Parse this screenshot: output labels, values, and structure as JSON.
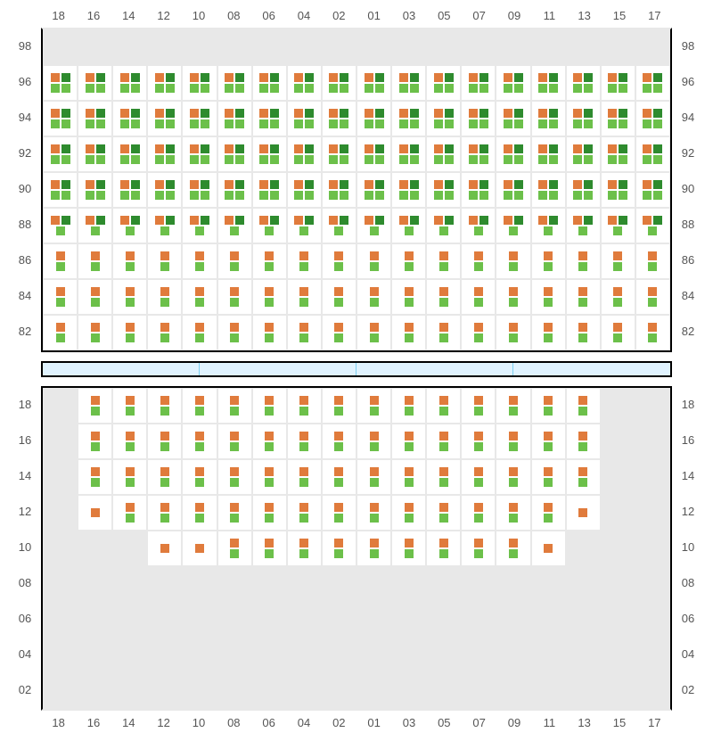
{
  "colors": {
    "orange": "#e07b3c",
    "green_light": "#6cc04a",
    "green_dark": "#2e8b2e",
    "cell_bg": "#ffffff",
    "empty_bg": "#e8e8e8"
  },
  "columns": [
    "18",
    "16",
    "14",
    "12",
    "10",
    "08",
    "06",
    "04",
    "02",
    "01",
    "03",
    "05",
    "07",
    "09",
    "11",
    "13",
    "15",
    "17"
  ],
  "top_section": {
    "rows": [
      "98",
      "96",
      "94",
      "92",
      "90",
      "88",
      "86",
      "84",
      "82"
    ],
    "cells": {
      "98": {
        "pattern": "empty",
        "cols": "all"
      },
      "96": {
        "pattern": "quad",
        "cols": "all"
      },
      "94": {
        "pattern": "quad",
        "cols": "all"
      },
      "92": {
        "pattern": "quad",
        "cols": "all"
      },
      "90": {
        "pattern": "quad",
        "cols": "all"
      },
      "88": {
        "pattern": "quad_partial",
        "cols": "all"
      },
      "86": {
        "pattern": "pair",
        "cols": "all"
      },
      "84": {
        "pattern": "pair",
        "cols": "all"
      },
      "82": {
        "pattern": "pair",
        "cols": "all"
      }
    }
  },
  "bottom_section": {
    "rows": [
      "18",
      "16",
      "14",
      "12",
      "10",
      "08",
      "06",
      "04",
      "02"
    ],
    "cells": {
      "18": {
        "pattern": "pair",
        "empty_cols": [
          "18",
          "17",
          "15"
        ]
      },
      "16": {
        "pattern": "pair",
        "empty_cols": [
          "18",
          "17",
          "15"
        ]
      },
      "14": {
        "pattern": "pair",
        "empty_cols": [
          "18",
          "17",
          "15"
        ]
      },
      "12": {
        "pattern": "pair_sparse",
        "empty_cols": [
          "18",
          "17",
          "15"
        ],
        "orange_only": [
          "16",
          "13"
        ]
      },
      "10": {
        "pattern": "pair_narrow",
        "empty_cols": [
          "18",
          "16",
          "14",
          "13",
          "15",
          "17"
        ],
        "orange_only": [
          "12",
          "10",
          "11"
        ]
      },
      "08": {
        "pattern": "empty",
        "cols": "all"
      },
      "06": {
        "pattern": "empty",
        "cols": "all"
      },
      "04": {
        "pattern": "empty",
        "cols": "all"
      },
      "02": {
        "pattern": "empty",
        "cols": "all"
      }
    }
  },
  "divider_segments": 4
}
